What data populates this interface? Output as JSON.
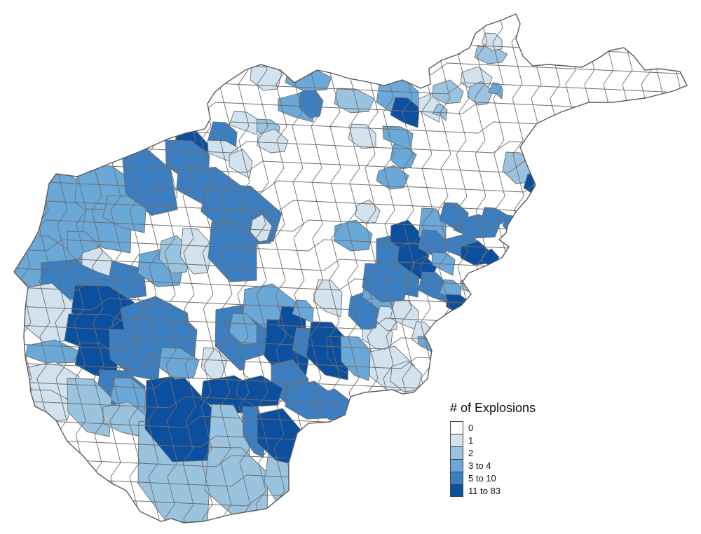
{
  "legend": {
    "title": "# of Explosions",
    "classes": [
      {
        "label": "0",
        "color": "#ffffff"
      },
      {
        "label": "1",
        "color": "#d2e2ef"
      },
      {
        "label": "2",
        "color": "#9ac3e0"
      },
      {
        "label": "3 to 4",
        "color": "#6aa8d8"
      },
      {
        "label": "5 to 10",
        "color": "#3b7ec1"
      },
      {
        "label": "11 to 83",
        "color": "#0b4f9e"
      }
    ]
  },
  "colors": {
    "border": "#6e6e6e",
    "background": "#ffffff"
  }
}
